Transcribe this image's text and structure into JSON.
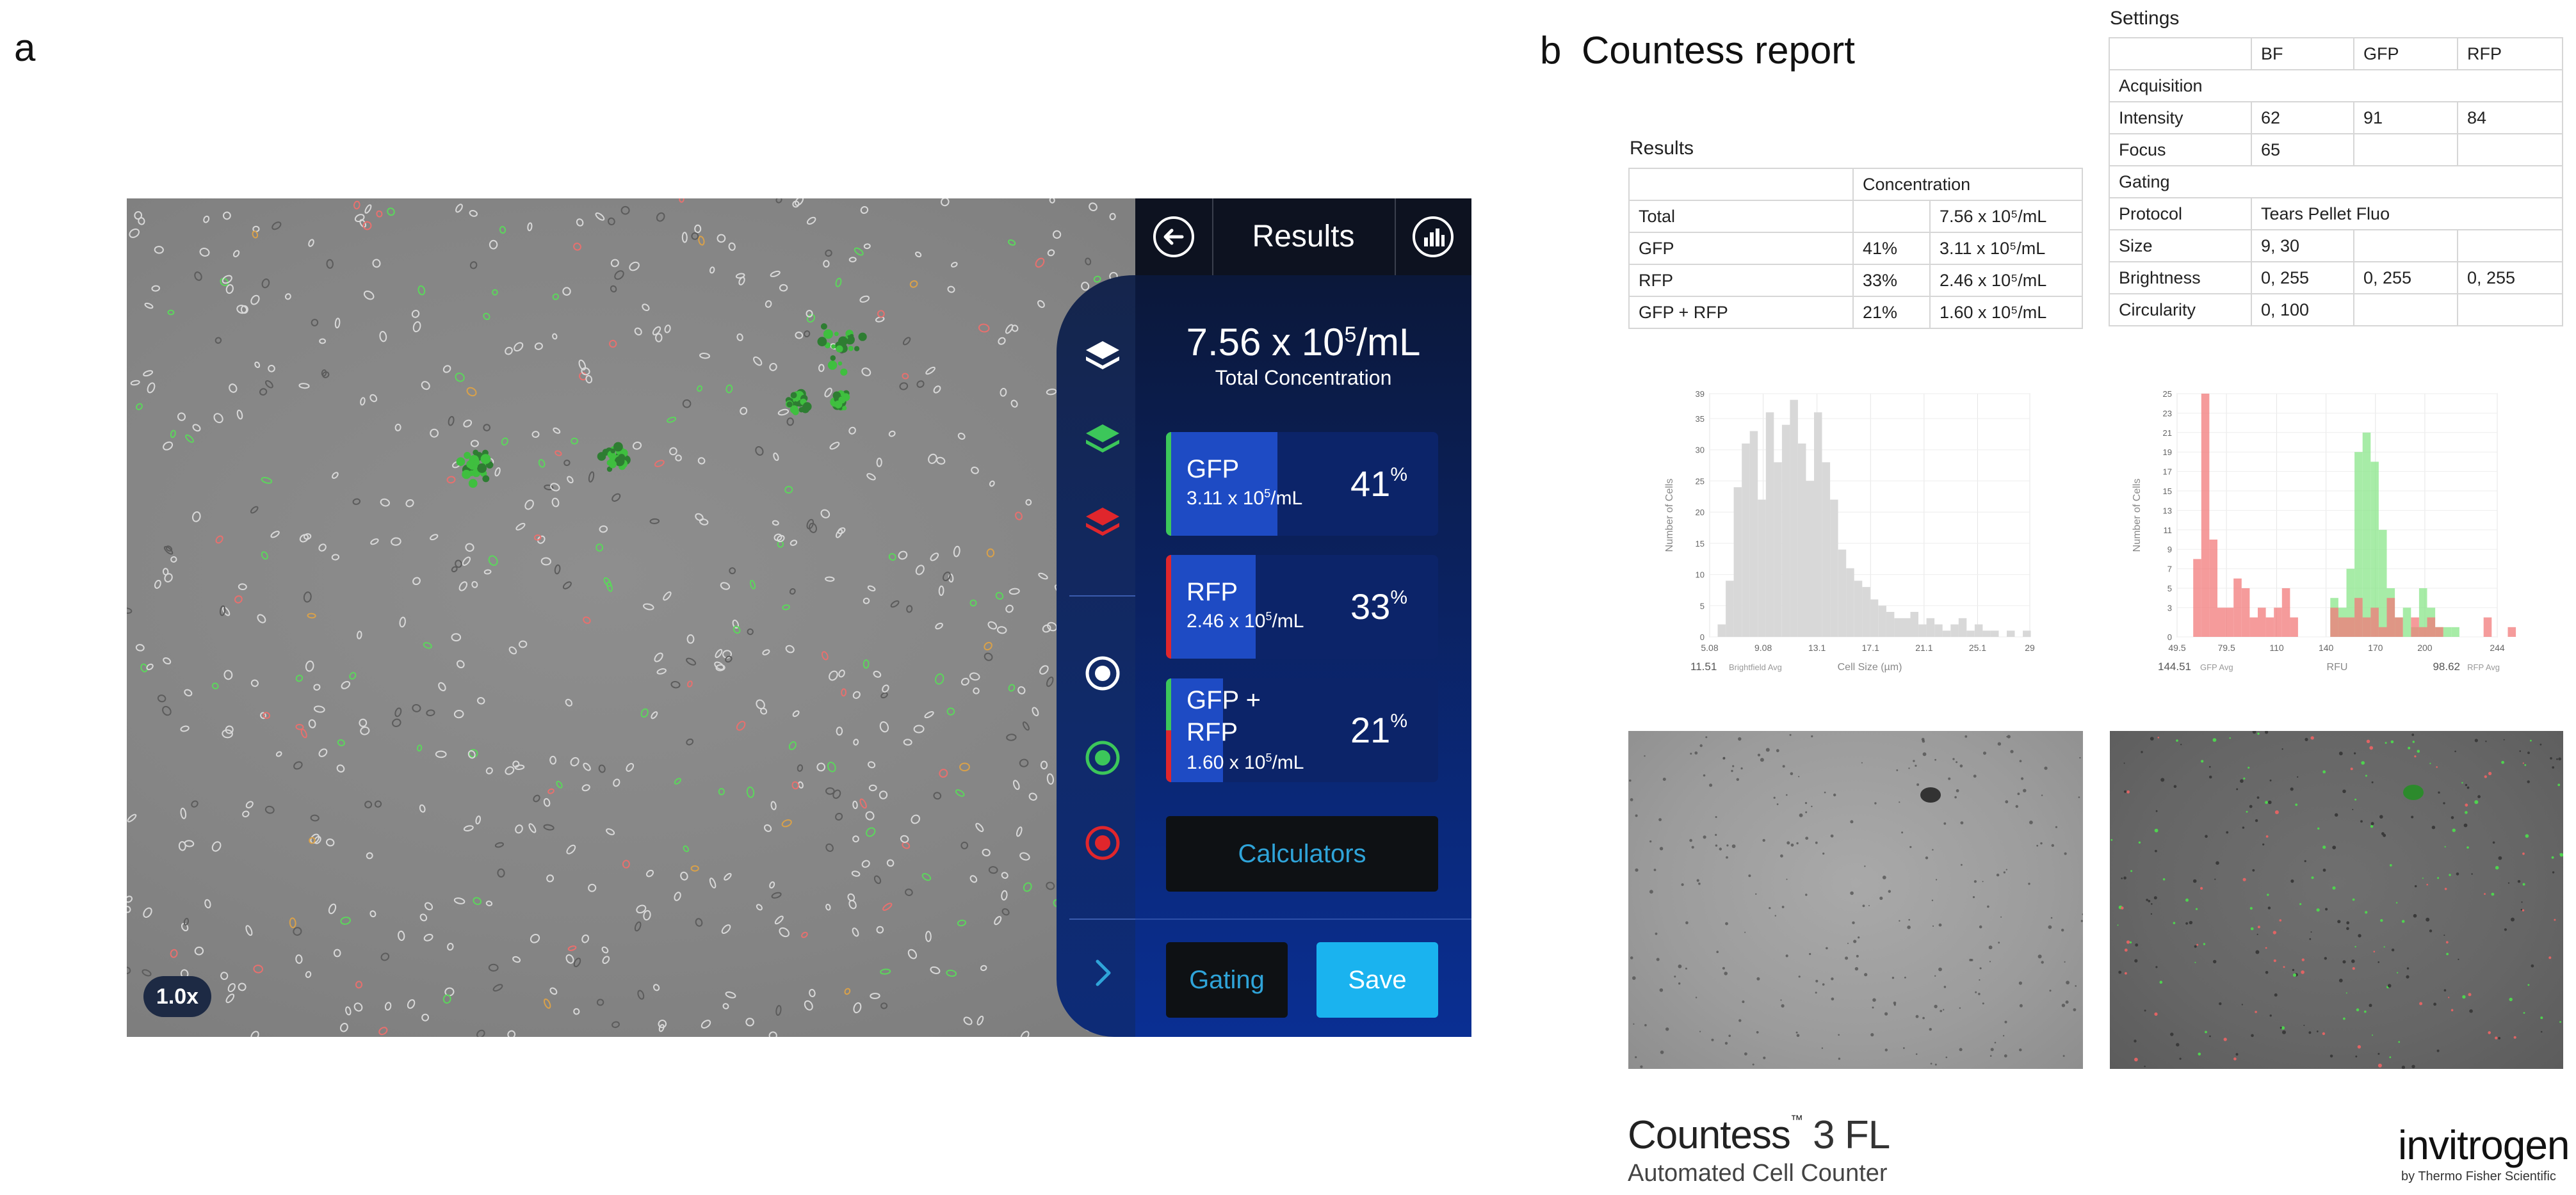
{
  "panel_labels": {
    "a": "a",
    "b": "b"
  },
  "device": {
    "zoom": "1.0x",
    "header": {
      "title": "Results"
    },
    "total": {
      "value": "7.56 x 10",
      "exp": "5",
      "unit": "/mL",
      "label": "Total Concentration"
    },
    "populations": [
      {
        "name": "GFP",
        "conc": "3.11 x 10",
        "exp": "5",
        "unit": "/mL",
        "pct": "41",
        "pct_sign": "%",
        "fill": 0.41,
        "color": "#3cc75a"
      },
      {
        "name": "RFP",
        "conc": "2.46 x 10",
        "exp": "5",
        "unit": "/mL",
        "pct": "33",
        "pct_sign": "%",
        "fill": 0.33,
        "color": "#e0262c"
      },
      {
        "name_line1": "GFP +",
        "name_line2": "RFP",
        "conc": "1.60 x 10",
        "exp": "5",
        "unit": "/mL",
        "pct": "21",
        "pct_sign": "%",
        "fill": 0.21
      }
    ],
    "calculators_label": "Calculators",
    "gating_label": "Gating",
    "save_label": "Save",
    "colors": {
      "accent": "#1ab3ef",
      "link": "#2fa4d9",
      "gfp": "#3cc75a",
      "rfp": "#e0262c"
    }
  },
  "report": {
    "title": "Countess report",
    "results": {
      "caption": "Results",
      "header": [
        "",
        "Concentration",
        ""
      ],
      "rows": [
        [
          "Total",
          "",
          "7.56 x 10⁵/mL"
        ],
        [
          "GFP",
          "41%",
          "3.11 x 10⁵/mL"
        ],
        [
          "RFP",
          "33%",
          "2.46 x 10⁵/mL"
        ],
        [
          "GFP + RFP",
          "21%",
          "1.60 x 10⁵/mL"
        ]
      ]
    },
    "settings": {
      "caption": "Settings",
      "header": [
        "",
        "BF",
        "GFP",
        "RFP"
      ],
      "acquisition_label": "Acquisition",
      "intensity": [
        "Intensity",
        "62",
        "91",
        "84"
      ],
      "focus": [
        "Focus",
        "65",
        "",
        ""
      ],
      "gating_label": "Gating",
      "protocol": [
        "Protocol",
        "Tears Pellet Fluo"
      ],
      "size": [
        "Size",
        "9, 30",
        "",
        ""
      ],
      "brightness": [
        "Brightness",
        "0, 255",
        "0, 255",
        "0, 255"
      ],
      "circularity": [
        "Circularity",
        "0, 100",
        "",
        ""
      ]
    },
    "brand": {
      "name": "Countess",
      "tm": "™",
      "model": "3 FL",
      "subtitle": "Automated Cell Counter"
    },
    "vendor": {
      "name": "invitrogen",
      "sub": "by Thermo Fisher Scientific"
    }
  },
  "chart_data": [
    {
      "type": "bar",
      "xlabel": "Cell Size (µm)",
      "ylabel": "Number of Cells",
      "x_ticks": [
        "5.08",
        "9.08",
        "13.1",
        "17.1",
        "21.1",
        "25.1",
        "29"
      ],
      "y_ticks": [
        "0",
        "5",
        "10",
        "15",
        "20",
        "25",
        "30",
        "35",
        "39"
      ],
      "xlim": [
        5.08,
        29
      ],
      "ylim": [
        0,
        39
      ],
      "bin_width": 0.6,
      "bins_start": 5.08,
      "values": [
        0,
        2,
        9,
        24,
        31,
        33,
        22,
        36,
        28,
        34,
        38,
        31,
        25,
        36,
        28,
        22,
        14,
        11,
        9,
        8,
        6,
        5,
        4,
        3,
        3,
        4,
        2,
        3,
        2,
        1,
        2,
        3,
        1,
        2,
        1,
        1,
        0,
        1,
        0,
        1
      ],
      "avg_value": "11.51",
      "avg_label": "Brightfield Avg",
      "color": "#d8d8d8"
    },
    {
      "type": "bar",
      "xlabel": "RFU",
      "ylabel": "Number of Cells",
      "x_ticks": [
        "49.5",
        "79.5",
        "110",
        "140",
        "170",
        "200",
        "244"
      ],
      "y_ticks": [
        "0",
        "3",
        "5",
        "7",
        "9",
        "11",
        "13",
        "15",
        "17",
        "19",
        "21",
        "23",
        "25"
      ],
      "xlim": [
        49.5,
        244
      ],
      "ylim": [
        0,
        25
      ],
      "bin_width": 4.9,
      "bins_start": 59.3,
      "series": [
        {
          "name": "GFP",
          "color": "#8ae68a",
          "values": [
            0,
            0,
            0,
            0,
            0,
            0,
            0,
            0,
            0,
            0,
            0,
            0,
            0,
            0,
            0,
            0,
            0,
            4,
            3,
            7,
            19,
            21,
            18,
            11,
            5,
            2,
            3,
            1,
            5,
            3,
            1,
            1,
            1,
            0,
            0,
            0,
            0,
            0,
            0,
            0
          ]
        },
        {
          "name": "RFP",
          "color": "#f27a7a",
          "values": [
            8,
            25,
            10,
            3,
            3,
            6,
            5,
            2,
            3,
            2,
            3,
            5,
            2,
            0,
            0,
            0,
            0,
            3,
            2,
            2,
            4,
            2,
            3,
            1,
            4,
            2,
            0,
            2,
            1,
            2,
            1,
            0,
            0,
            0,
            0,
            0,
            2,
            0,
            0,
            1
          ]
        }
      ],
      "gfp_avg_value": "144.51",
      "gfp_avg_label": "GFP Avg",
      "rfp_avg_value": "98.62",
      "rfp_avg_label": "RFP Avg"
    }
  ]
}
